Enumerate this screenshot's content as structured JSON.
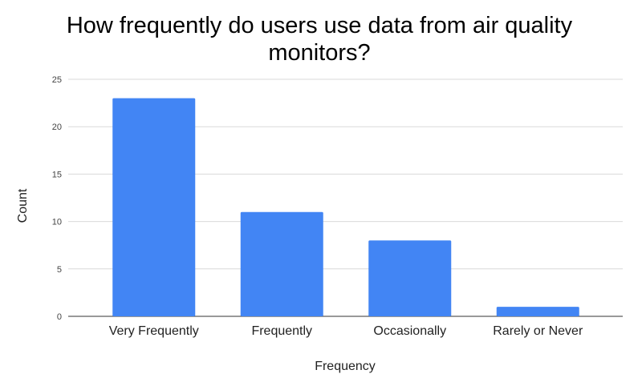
{
  "chart_data": {
    "type": "bar",
    "title_lines": [
      "How frequently do users use data from air quality",
      "monitors?"
    ],
    "xlabel": "Frequency",
    "ylabel": "Count",
    "categories": [
      "Very Frequently",
      "Frequently",
      "Occasionally",
      "Rarely or Never"
    ],
    "values": [
      23,
      11,
      8,
      1
    ],
    "ylim": [
      0,
      25
    ],
    "yticks": [
      0,
      5,
      10,
      15,
      20,
      25
    ],
    "grid": true,
    "legend": "none",
    "bar_color": "#4285f4"
  }
}
